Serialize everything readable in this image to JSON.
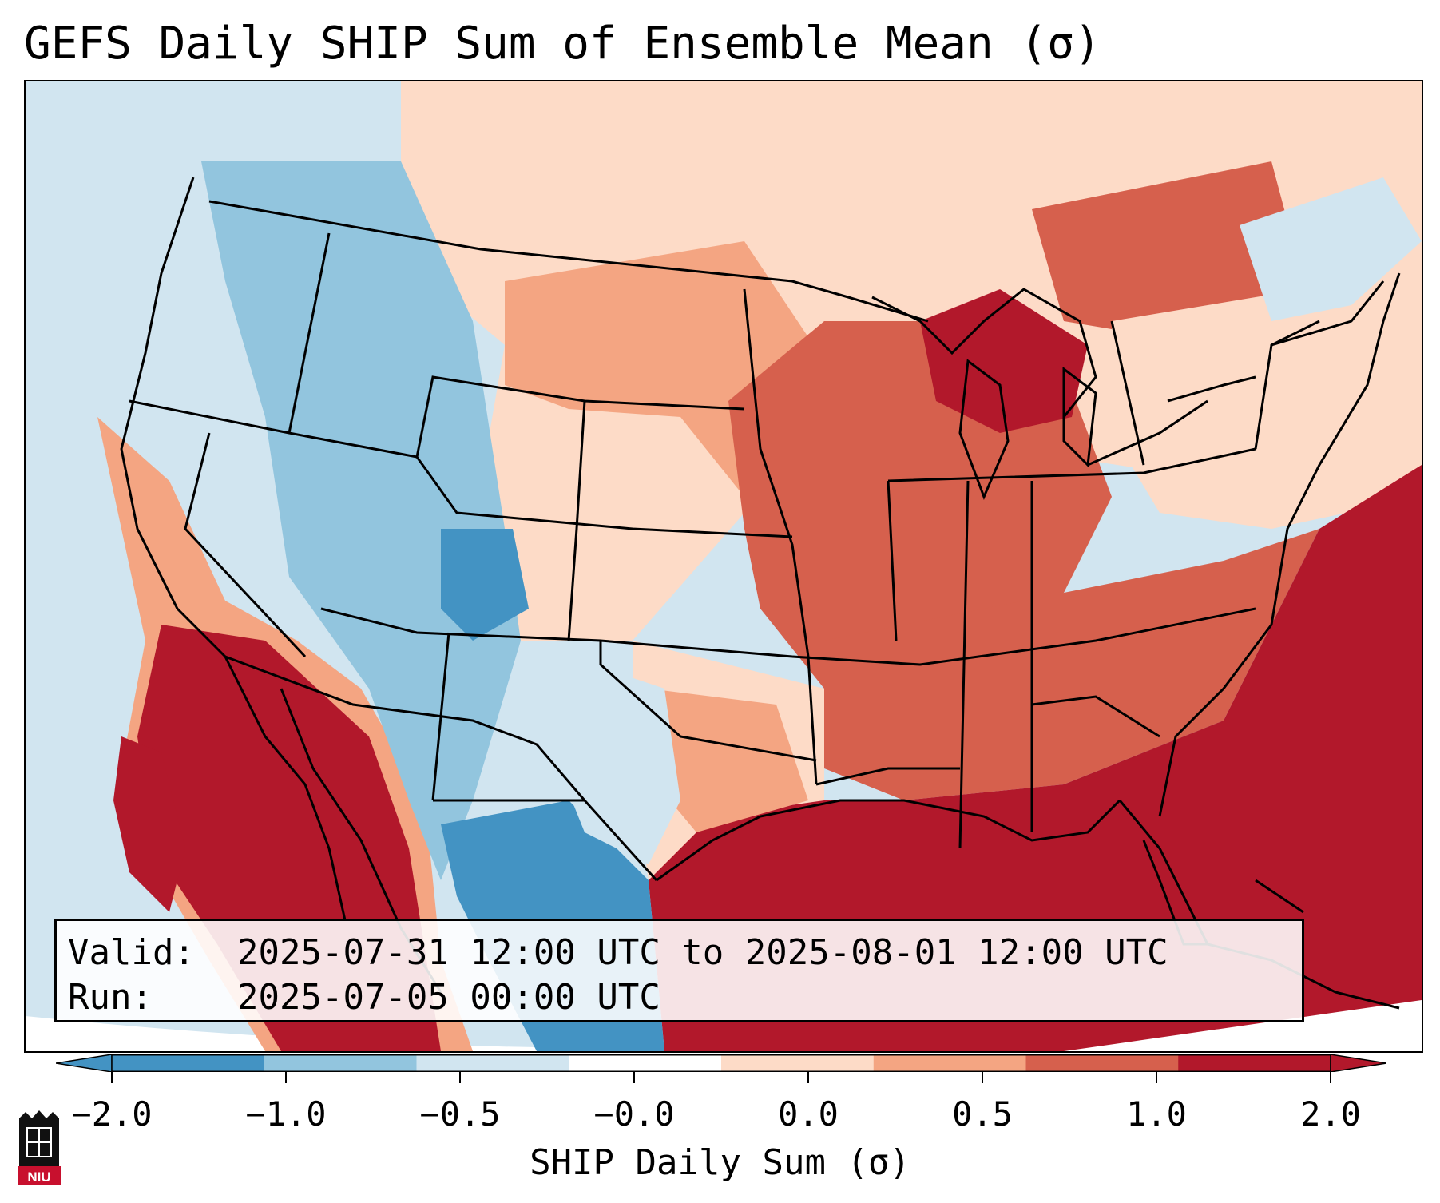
{
  "title": "GEFS Daily SHIP Sum of Ensemble Mean (σ)",
  "info": {
    "valid_label": "Valid:",
    "valid_value": "2025-07-31 12:00 UTC to 2025-08-01 12:00 UTC",
    "run_label": "Run:",
    "run_value": "2025-07-05 00:00 UTC"
  },
  "colorbar": {
    "label": "SHIP Daily Sum (σ)",
    "ticks": [
      "−2.0",
      "−1.0",
      "−0.5",
      "−0.0",
      "0.0",
      "0.5",
      "1.0",
      "2.0"
    ],
    "colors": [
      "#4393c3",
      "#92c5de",
      "#d1e5f0",
      "#ffffff",
      "#fddbc7",
      "#f4a582",
      "#d6604d",
      "#b2182b"
    ],
    "extend": "both"
  },
  "map": {
    "region": "Contiguous United States with surrounding Canada, Mexico and Gulf of Mexico",
    "background_color": "#d1e5f0",
    "boundary_color": "#000000"
  },
  "logo": {
    "name": "niu-logo",
    "text": "NIU"
  }
}
